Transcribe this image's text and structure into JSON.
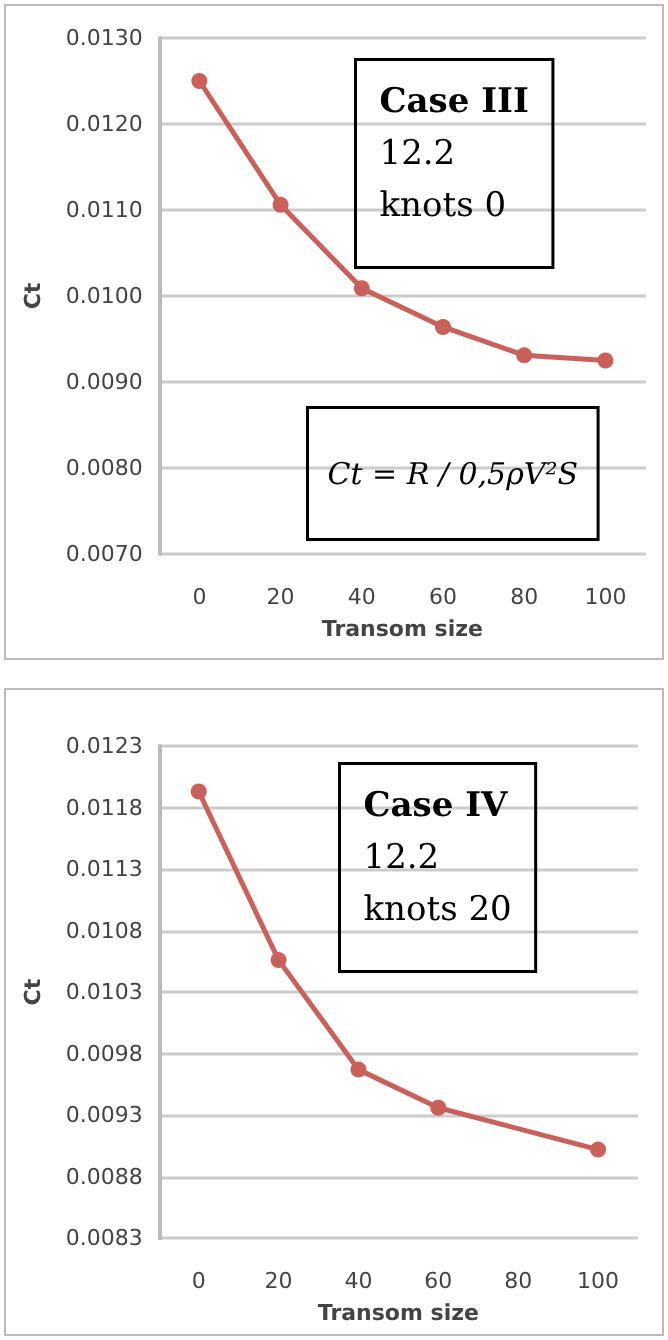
{
  "chart_data": [
    {
      "type": "line",
      "xlabel": "Transom size",
      "ylabel": "Ct",
      "categories": [
        "0",
        "20",
        "40",
        "60",
        "80",
        "100"
      ],
      "series": [
        {
          "color": "#c9605a",
          "values": [
            0.0125,
            0.01106,
            0.01009,
            0.00964,
            0.00931,
            0.00925
          ]
        }
      ],
      "ylim": [
        0.007,
        0.013
      ],
      "yticks": [
        {
          "value": 0.007,
          "label": "0.0070"
        },
        {
          "value": 0.008,
          "label": "0.0080"
        },
        {
          "value": 0.009,
          "label": "0.0090"
        },
        {
          "value": 0.01,
          "label": "0.0100"
        },
        {
          "value": 0.011,
          "label": "0.0110"
        },
        {
          "value": 0.012,
          "label": "0.0120"
        },
        {
          "value": 0.013,
          "label": "0.0130"
        }
      ],
      "grid": "y",
      "marker": "circle",
      "line_style": "solid",
      "annotations": [
        "Case III\n12.2\nknots 0",
        "Ct = R / 0,5ρV²S"
      ]
    },
    {
      "type": "line",
      "xlabel": "Transom size",
      "ylabel": "Ct",
      "categories": [
        "0",
        "20",
        "40",
        "60",
        "80",
        "100"
      ],
      "series": [
        {
          "color": "#c9605a",
          "values": [
            0.01193,
            0.01056,
            0.00967,
            0.00936,
            null,
            0.00902
          ]
        }
      ],
      "ylim": [
        0.0083,
        0.0123
      ],
      "yticks": [
        0.0083,
        0.0088,
        0.0093,
        0.0098,
        0.0103,
        0.0108,
        0.0113,
        0.0118,
        0.0123
      ],
      "grid": "y",
      "marker": "circle",
      "line_style": "solid",
      "annotations": [
        "Case IV\n12.2\nknots 20"
      ]
    }
  ]
}
